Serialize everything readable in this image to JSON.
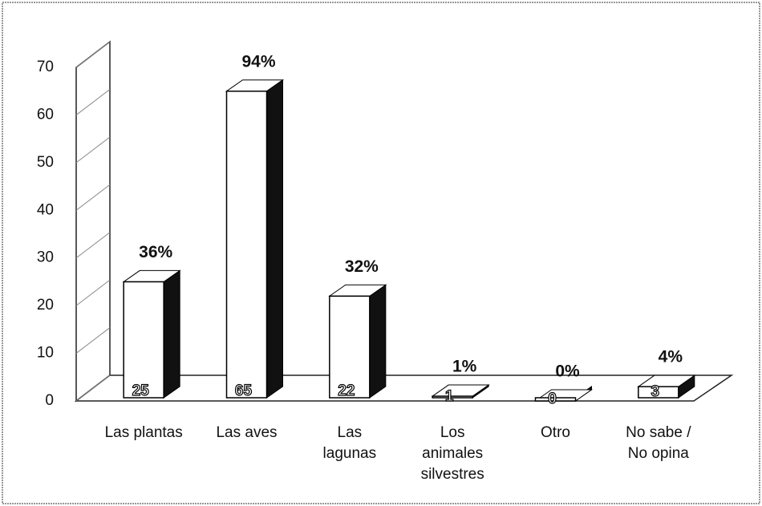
{
  "chart_data": {
    "type": "bar3d",
    "categories": [
      "Las plantas",
      "Las aves",
      "Las\nlagunas",
      "Los\nanimales\nsilvestres",
      "Otro",
      "No sabe /\nNo opina"
    ],
    "values": [
      25,
      65,
      22,
      1,
      0,
      3
    ],
    "percent_labels": [
      "36%",
      "94%",
      "32%",
      "1%",
      "0%",
      "4%"
    ],
    "color": "#ffffff",
    "side_color": "#111111",
    "ylim": [
      0,
      70
    ],
    "yticks": [
      0,
      10,
      20,
      30,
      40,
      50,
      60,
      70
    ],
    "grid": true
  }
}
